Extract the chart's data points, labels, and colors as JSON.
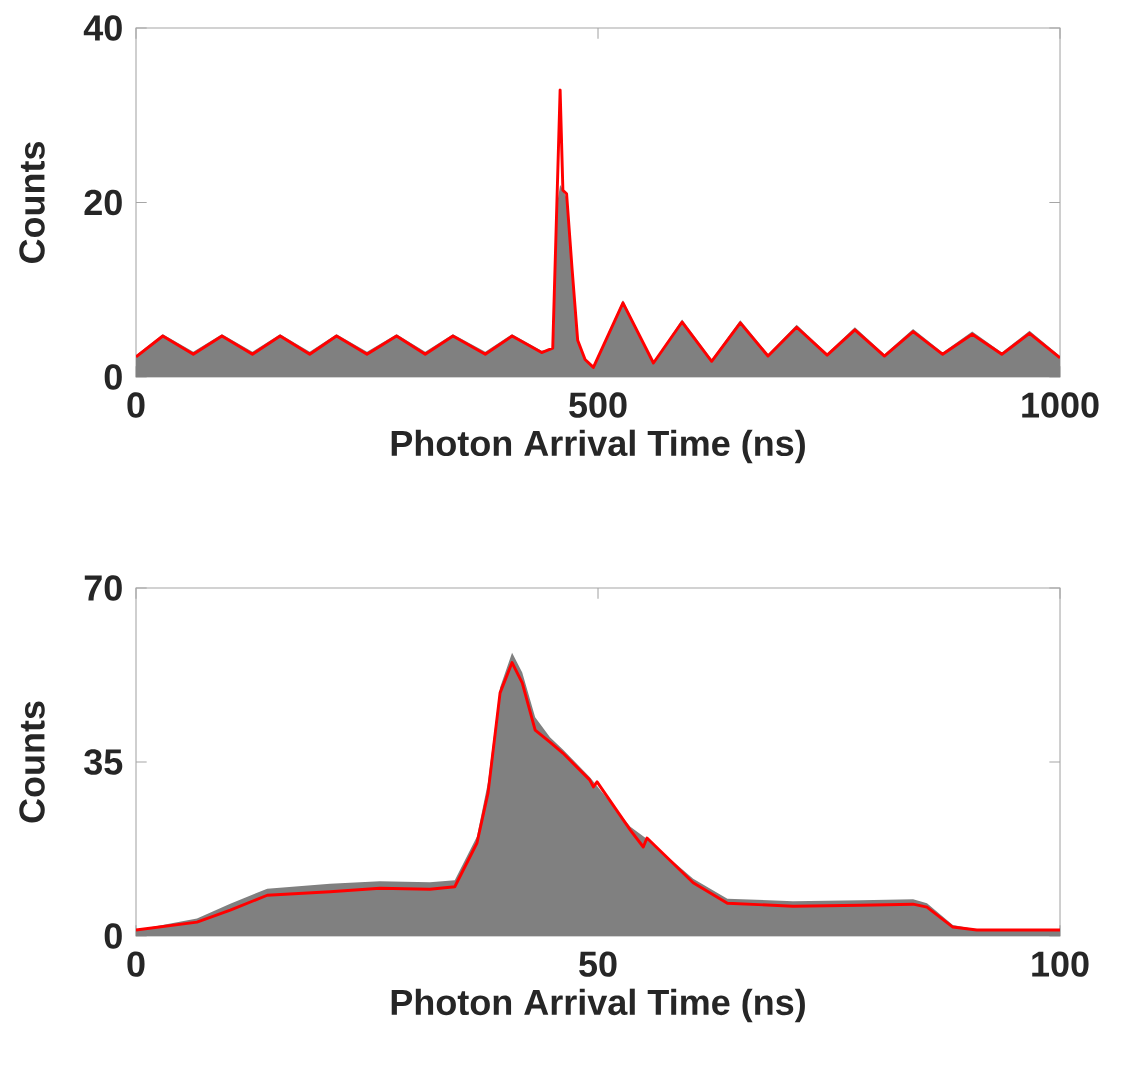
{
  "chart_data": [
    {
      "type": "area",
      "xlabel": "Photon Arrival Time (ns)",
      "ylabel": "Counts",
      "xlim": [
        0,
        1000
      ],
      "ylim": [
        0,
        40
      ],
      "xticks": [
        0,
        500,
        1000
      ],
      "yticks": [
        0,
        20,
        40
      ],
      "series": [
        {
          "color": "#808080",
          "x": [
            0,
            29,
            62,
            93,
            126,
            156,
            188,
            217,
            250,
            282,
            313,
            343,
            378,
            407,
            439,
            452,
            456,
            459,
            462,
            466,
            472,
            478,
            486,
            495,
            527,
            560,
            591,
            623,
            654,
            684,
            715,
            748,
            778,
            810,
            841,
            873,
            905,
            937,
            967,
            1000
          ],
          "values": [
            2.5,
            4.9,
            2.9,
            4.9,
            2.9,
            4.9,
            2.9,
            4.9,
            2.9,
            4.9,
            2.9,
            4.9,
            2.9,
            4.9,
            3.0,
            3.3,
            20,
            22,
            21.5,
            20.5,
            12,
            4.5,
            2.0,
            1.2,
            8.8,
            1.7,
            6.6,
            2.0,
            6.5,
            2.6,
            6.0,
            2.7,
            5.7,
            2.6,
            5.5,
            2.8,
            5.2,
            2.8,
            5.3,
            2.4
          ]
        },
        {
          "type": "line",
          "color": "#ff0000",
          "x": [
            0,
            29,
            62,
            93,
            126,
            156,
            188,
            217,
            250,
            282,
            313,
            343,
            378,
            407,
            439,
            451,
            459,
            462,
            466,
            472,
            478,
            486,
            495,
            527,
            560,
            591,
            623,
            654,
            684,
            715,
            748,
            778,
            810,
            841,
            873,
            905,
            937,
            967,
            1000
          ],
          "values": [
            2.3,
            4.7,
            2.6,
            4.7,
            2.6,
            4.7,
            2.6,
            4.7,
            2.6,
            4.7,
            2.6,
            4.7,
            2.6,
            4.7,
            2.8,
            3.3,
            32.9,
            21.4,
            21,
            12.3,
            4.2,
            2.0,
            1.1,
            8.5,
            1.6,
            6.3,
            1.8,
            6.2,
            2.4,
            5.7,
            2.5,
            5.4,
            2.4,
            5.2,
            2.6,
            4.9,
            2.6,
            5.0,
            2.2
          ]
        }
      ]
    },
    {
      "type": "area",
      "xlabel": "Photon Arrival Time (ns)",
      "ylabel": "Counts",
      "xlim": [
        0,
        100
      ],
      "ylim": [
        0,
        70
      ],
      "xticks": [
        0,
        50,
        100
      ],
      "yticks": [
        0,
        35,
        70
      ],
      "series": [
        {
          "color": "#808080",
          "x": [
            0,
            6.6,
            10.2,
            14.2,
            21,
            26.4,
            31.8,
            34.5,
            36.9,
            38.1,
            39.4,
            40.7,
            41.8,
            43.2,
            44.8,
            46.2,
            49.1,
            53.5,
            55.3,
            60.3,
            64,
            71.1,
            78.4,
            84.1,
            85.6,
            88.4,
            91,
            100
          ],
          "values": [
            1.2,
            3.5,
            6.5,
            9.5,
            10.5,
            11,
            10.8,
            11.2,
            20,
            31,
            50,
            57,
            53,
            44,
            40,
            37.5,
            32,
            22,
            19.5,
            11.5,
            7.5,
            7,
            7.2,
            7.4,
            6.6,
            2.2,
            1.3,
            1.3
          ]
        },
        {
          "type": "line",
          "color": "#ff0000",
          "x": [
            0,
            6.6,
            10.2,
            14.2,
            21,
            26.4,
            31.8,
            34.5,
            36.9,
            38.1,
            39.4,
            40.7,
            41.8,
            43.2,
            44.8,
            46.2,
            49.1,
            49.5,
            49.9,
            53.5,
            54.9,
            55.3,
            60.3,
            64,
            71.1,
            78.4,
            84.1,
            85.6,
            88.4,
            91,
            100
          ],
          "values": [
            1.2,
            2.8,
            5.2,
            8.2,
            8.9,
            9.6,
            9.4,
            9.9,
            18.7,
            28.8,
            48.9,
            55,
            50.9,
            41.4,
            39,
            36.8,
            31.4,
            30,
            31,
            21.3,
            17.9,
            19.7,
            10.7,
            6.6,
            6,
            6.2,
            6.4,
            5.8,
            1.8,
            1.2,
            1.2
          ]
        }
      ]
    }
  ]
}
